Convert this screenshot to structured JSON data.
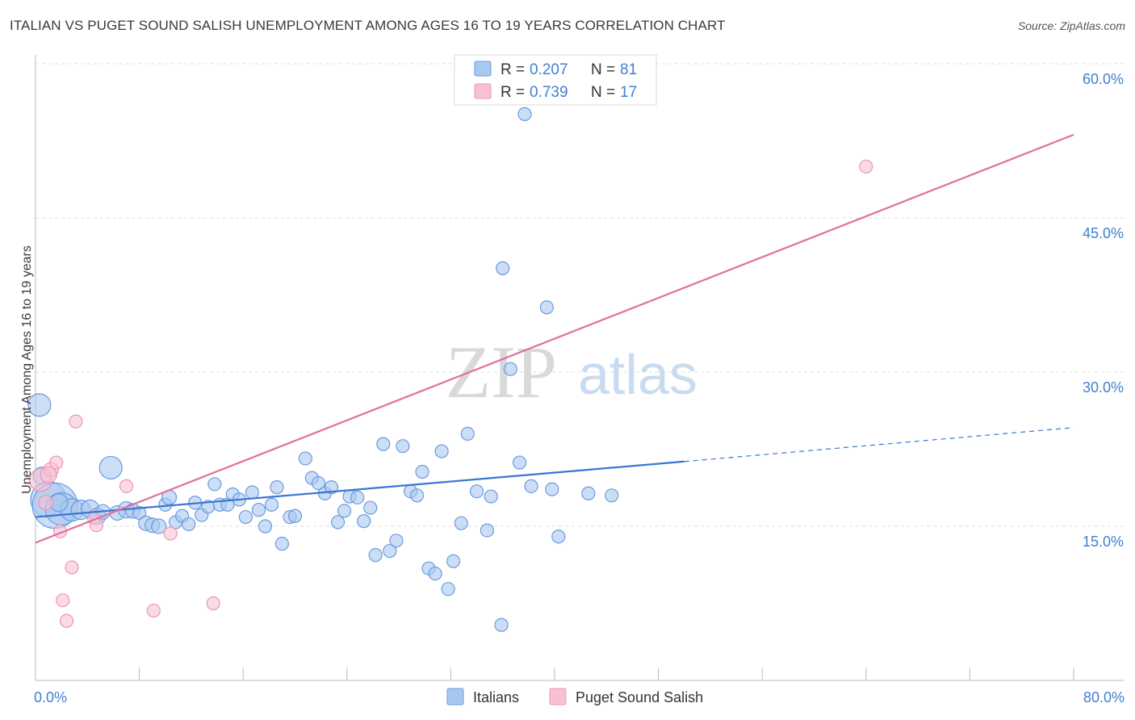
{
  "title": "ITALIAN VS PUGET SOUND SALISH UNEMPLOYMENT AMONG AGES 16 TO 19 YEARS CORRELATION CHART",
  "source": "Source: ZipAtlas.com",
  "watermark": {
    "zip": "ZIP",
    "atlas": "atlas"
  },
  "colors": {
    "blue": "#3a76d2",
    "blue_fill": "#a9c8f0",
    "blue_stroke": "#6b9be0",
    "pink": "#e0709a",
    "pink_fill": "#f6c2d3",
    "pink_stroke": "#ee94b2",
    "grid": "#dddddd",
    "axis": "#bbbbbb"
  },
  "legend": {
    "rows": [
      {
        "r_label": "R =",
        "r_value": "0.207",
        "n_label": "N =",
        "n_value": "81"
      },
      {
        "r_label": "R =",
        "r_value": "0.739",
        "n_label": "N =",
        "n_value": "17"
      }
    ]
  },
  "chart_data": {
    "type": "scatter",
    "title": "ITALIAN VS PUGET SOUND SALISH UNEMPLOYMENT AMONG AGES 16 TO 19 YEARS CORRELATION CHART",
    "xlabel": "",
    "ylabel": "Unemployment Among Ages 16 to 19 years",
    "xlim": [
      0,
      80
    ],
    "ylim": [
      0,
      60
    ],
    "x_tick_labels": [
      "0.0%",
      "80.0%"
    ],
    "y_ticks": [
      {
        "value": 15,
        "label": "15.0%"
      },
      {
        "value": 30,
        "label": "30.0%"
      },
      {
        "value": 45,
        "label": "45.0%"
      },
      {
        "value": 60,
        "label": "60.0%"
      }
    ],
    "grid": true,
    "legend_placement": "top-center",
    "series": [
      {
        "name": "Italians",
        "color": "#3a76d2",
        "trend": {
          "x0": 0,
          "y0": 15.9,
          "x1": 50,
          "y1": 21.3,
          "dash_x1": 80,
          "dash_y1": 24.6
        },
        "points": [
          [
            0.3,
            26.8,
            14
          ],
          [
            0.5,
            19.9,
            11
          ],
          [
            1.0,
            17.6,
            22
          ],
          [
            1.5,
            17.0,
            28
          ],
          [
            2.0,
            16.7,
            20
          ],
          [
            2.8,
            16.6,
            14
          ],
          [
            3.5,
            16.6,
            12
          ],
          [
            4.2,
            16.7,
            11
          ],
          [
            4.8,
            16.0,
            10
          ],
          [
            5.2,
            16.4,
            9
          ],
          [
            5.8,
            20.7,
            14
          ],
          [
            6.3,
            16.3,
            9
          ],
          [
            7.0,
            16.6,
            10
          ],
          [
            7.5,
            16.5,
            9
          ],
          [
            8.0,
            16.3,
            8
          ],
          [
            8.5,
            15.3,
            9
          ],
          [
            9.0,
            15.1,
            9
          ],
          [
            9.5,
            15.0,
            9
          ],
          [
            10.0,
            17.1,
            8
          ],
          [
            10.3,
            17.8,
            9
          ],
          [
            10.8,
            15.4,
            8
          ],
          [
            11.3,
            16.0,
            8
          ],
          [
            11.8,
            15.2,
            8
          ],
          [
            12.3,
            17.3,
            8
          ],
          [
            12.8,
            16.1,
            8
          ],
          [
            13.3,
            16.9,
            8
          ],
          [
            13.8,
            19.1,
            8
          ],
          [
            14.2,
            17.1,
            8
          ],
          [
            14.8,
            17.1,
            8
          ],
          [
            15.2,
            18.1,
            8
          ],
          [
            15.7,
            17.6,
            8
          ],
          [
            16.2,
            15.9,
            8
          ],
          [
            16.7,
            18.3,
            8
          ],
          [
            17.2,
            16.6,
            8
          ],
          [
            17.7,
            15.0,
            8
          ],
          [
            18.2,
            17.1,
            8
          ],
          [
            18.6,
            18.8,
            8
          ],
          [
            19.0,
            13.3,
            8
          ],
          [
            19.6,
            15.9,
            8
          ],
          [
            20.0,
            16.0,
            8
          ],
          [
            20.8,
            21.6,
            8
          ],
          [
            21.3,
            19.7,
            8
          ],
          [
            21.8,
            19.2,
            8
          ],
          [
            22.3,
            18.2,
            8
          ],
          [
            22.8,
            18.8,
            8
          ],
          [
            23.3,
            15.4,
            8
          ],
          [
            23.8,
            16.5,
            8
          ],
          [
            24.2,
            17.9,
            8
          ],
          [
            24.8,
            17.8,
            8
          ],
          [
            25.3,
            15.5,
            8
          ],
          [
            25.8,
            16.8,
            8
          ],
          [
            26.2,
            12.2,
            8
          ],
          [
            26.8,
            23.0,
            8
          ],
          [
            27.3,
            12.6,
            8
          ],
          [
            27.8,
            13.6,
            8
          ],
          [
            28.3,
            22.8,
            8
          ],
          [
            28.9,
            18.4,
            8
          ],
          [
            29.4,
            18.0,
            8
          ],
          [
            29.8,
            20.3,
            8
          ],
          [
            30.3,
            10.9,
            8
          ],
          [
            30.8,
            10.4,
            8
          ],
          [
            31.3,
            22.3,
            8
          ],
          [
            31.8,
            8.9,
            8
          ],
          [
            32.2,
            11.6,
            8
          ],
          [
            32.8,
            15.3,
            8
          ],
          [
            33.3,
            24.0,
            8
          ],
          [
            34.0,
            18.4,
            8
          ],
          [
            34.8,
            14.6,
            8
          ],
          [
            35.1,
            17.9,
            8
          ],
          [
            35.9,
            5.4,
            8
          ],
          [
            36.0,
            40.1,
            8
          ],
          [
            36.6,
            30.3,
            8
          ],
          [
            37.3,
            21.2,
            8
          ],
          [
            37.7,
            55.1,
            8
          ],
          [
            38.2,
            18.9,
            8
          ],
          [
            39.4,
            36.3,
            8
          ],
          [
            39.8,
            18.6,
            8
          ],
          [
            40.3,
            14.0,
            8
          ],
          [
            42.6,
            18.2,
            8
          ],
          [
            44.4,
            18.0,
            8
          ],
          [
            1.8,
            17.3,
            11
          ]
        ]
      },
      {
        "name": "Puget Sound Salish",
        "color": "#e0709a",
        "trend": {
          "x0": 0,
          "y0": 13.4,
          "x1": 80,
          "y1": 53.1
        },
        "points": [
          [
            0.4,
            19.5,
            14
          ],
          [
            0.8,
            17.3,
            9
          ],
          [
            1.2,
            20.5,
            9
          ],
          [
            1.6,
            21.2,
            8
          ],
          [
            1.9,
            14.5,
            8
          ],
          [
            2.1,
            7.8,
            8
          ],
          [
            2.4,
            5.8,
            8
          ],
          [
            2.8,
            11.0,
            8
          ],
          [
            3.1,
            25.2,
            8
          ],
          [
            4.5,
            15.8,
            8
          ],
          [
            4.7,
            15.1,
            8
          ],
          [
            7.0,
            18.9,
            8
          ],
          [
            9.1,
            6.8,
            8
          ],
          [
            10.4,
            14.3,
            8
          ],
          [
            13.7,
            7.5,
            8
          ],
          [
            64.0,
            50.0,
            8
          ],
          [
            1.0,
            20.0,
            10
          ]
        ]
      }
    ]
  }
}
